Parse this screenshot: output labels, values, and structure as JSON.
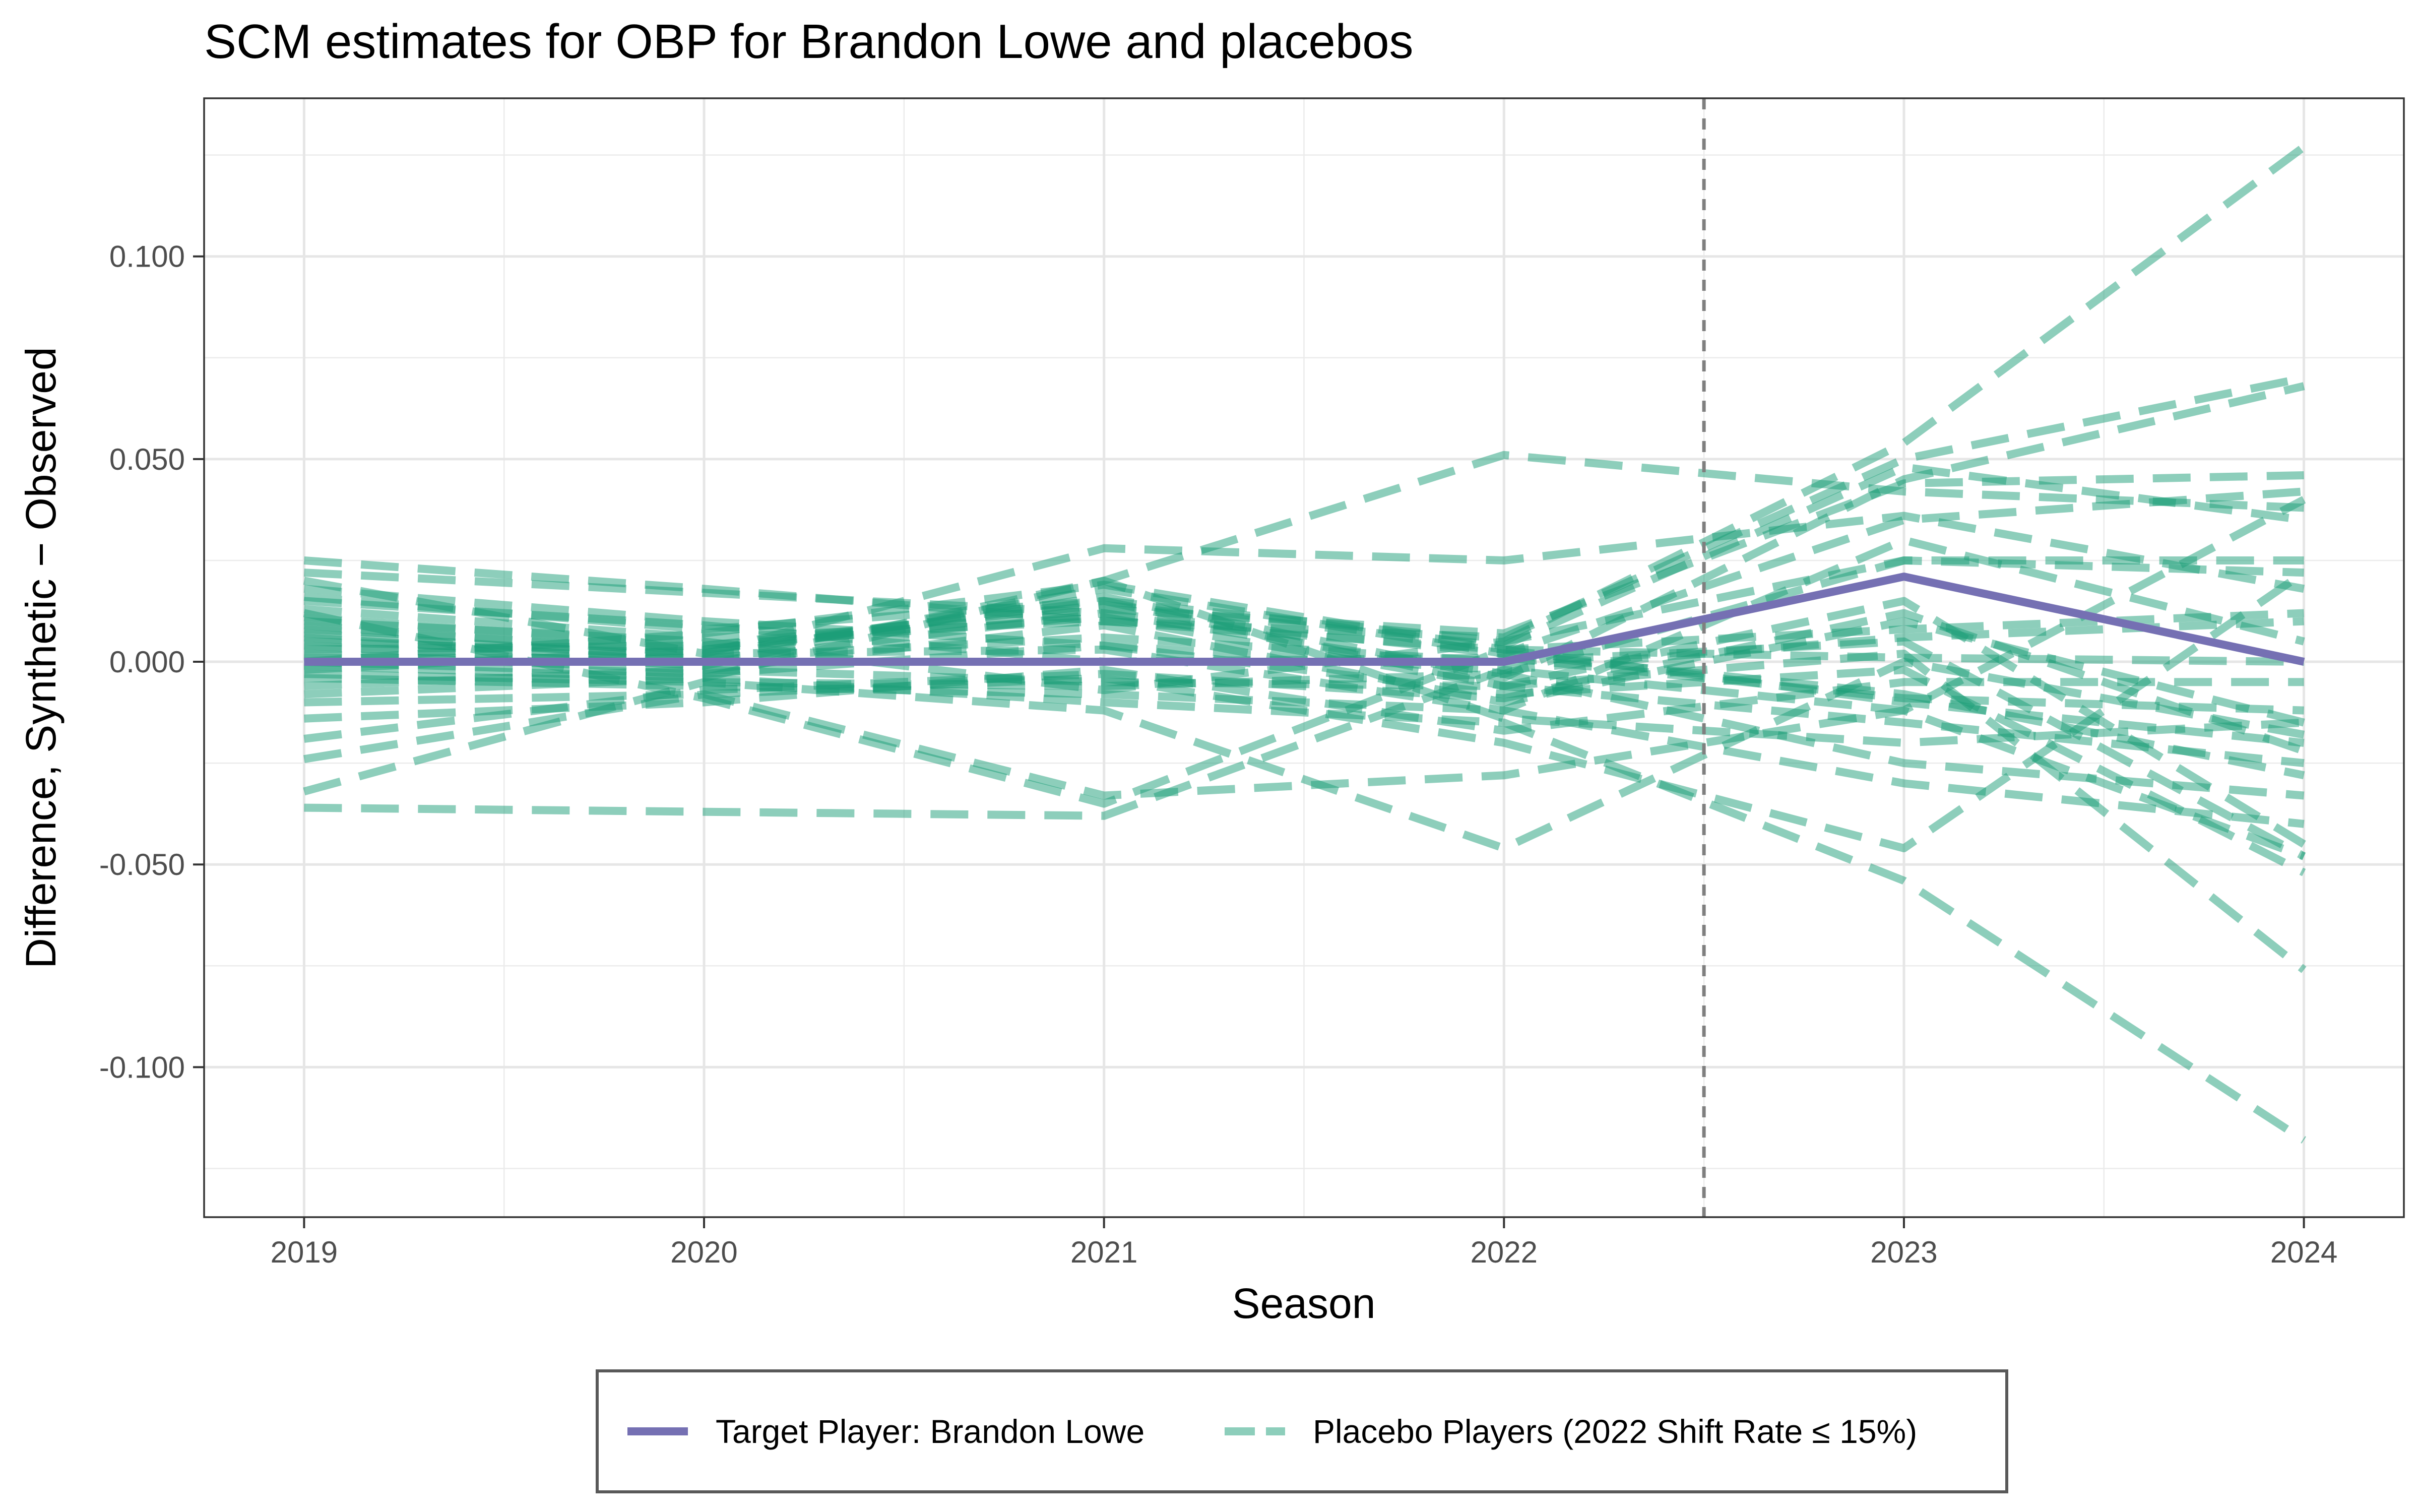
{
  "chart_data": {
    "type": "line",
    "title": "SCM estimates for OBP for Brandon Lowe and placebos",
    "xlabel": "Season",
    "ylabel": "Difference, Synthetic − Observed",
    "x": [
      2019,
      2020,
      2021,
      2022,
      2023,
      2024
    ],
    "x_tick_labels": [
      "2019",
      "2020",
      "2021",
      "2022",
      "2023",
      "2024"
    ],
    "xlim": [
      2018.75,
      2024.25
    ],
    "ylim": [
      -0.137,
      0.139
    ],
    "y_ticks": [
      0.1,
      0.05,
      0.0,
      -0.05,
      -0.1
    ],
    "y_tick_labels": [
      "0.100",
      "0.050",
      "0.000",
      "-0.050",
      "-0.100"
    ],
    "intervention_line_x": 2022.5,
    "grid": true,
    "legend_position": "bottom",
    "colors": {
      "target": "#7570b3",
      "placebo": "#1b9e77",
      "intervention_line": "#7f7f7f"
    },
    "target_series": {
      "name": "Target Player: Brandon Lowe",
      "values": [
        0.0,
        0.0,
        0.0,
        0.0,
        0.021,
        0.0
      ]
    },
    "placebo_legend_label": "Placebo Players (2022 Shift Rate ≤ 15%)",
    "placebo_series": [
      [
        0.025,
        0.018,
        0.01,
        0.003,
        -0.01,
        -0.02
      ],
      [
        0.022,
        0.017,
        0.012,
        0.002,
        -0.008,
        -0.028
      ],
      [
        0.018,
        0.01,
        0.004,
        -0.002,
        0.006,
        0.01
      ],
      [
        0.016,
        0.008,
        0.015,
        0.005,
        0.054,
        0.127
      ],
      [
        0.013,
        0.006,
        0.01,
        0.006,
        0.05,
        0.07
      ],
      [
        0.011,
        0.004,
        0.014,
        0.004,
        0.048,
        0.035
      ],
      [
        0.009,
        0.002,
        0.016,
        -0.004,
        0.045,
        0.068
      ],
      [
        0.008,
        0.003,
        0.013,
        0.007,
        0.044,
        0.046
      ],
      [
        0.007,
        0.001,
        0.018,
        0.002,
        0.035,
        0.042
      ],
      [
        0.006,
        0.0,
        0.012,
        -0.003,
        0.025,
        0.025
      ],
      [
        0.005,
        0.002,
        0.028,
        0.025,
        0.036,
        0.018
      ],
      [
        0.004,
        -0.001,
        0.02,
        0.051,
        0.042,
        0.038
      ],
      [
        0.003,
        0.004,
        0.011,
        -0.006,
        0.015,
        -0.045
      ],
      [
        0.002,
        -0.002,
        0.009,
        -0.01,
        0.01,
        -0.015
      ],
      [
        0.001,
        0.001,
        0.006,
        0.0,
        0.005,
        -0.048
      ],
      [
        0.0,
        -0.003,
        0.004,
        -0.008,
        -0.002,
        -0.052
      ],
      [
        -0.001,
        -0.004,
        0.02,
        -0.014,
        -0.02,
        -0.015
      ],
      [
        -0.003,
        -0.005,
        -0.006,
        -0.003,
        -0.025,
        -0.033
      ],
      [
        -0.004,
        -0.006,
        -0.008,
        -0.012,
        -0.03,
        -0.04
      ],
      [
        -0.006,
        -0.002,
        -0.005,
        -0.006,
        0.002,
        -0.076
      ],
      [
        -0.008,
        -0.004,
        -0.01,
        -0.015,
        -0.054,
        -0.118
      ],
      [
        -0.01,
        -0.008,
        -0.004,
        -0.02,
        -0.046,
        0.022
      ],
      [
        -0.014,
        -0.01,
        -0.002,
        -0.017,
        -0.005,
        -0.005
      ],
      [
        -0.019,
        -0.007,
        -0.003,
        -0.009,
        0.012,
        -0.022
      ],
      [
        -0.024,
        -0.008,
        -0.033,
        -0.028,
        -0.012,
        0.04
      ],
      [
        -0.032,
        -0.005,
        -0.012,
        -0.046,
        0.0,
        -0.018
      ],
      [
        -0.036,
        -0.037,
        -0.038,
        -0.002,
        -0.012,
        -0.048
      ],
      [
        0.012,
        -0.009,
        -0.035,
        0.003,
        0.001,
        0.0
      ],
      [
        0.01,
        0.005,
        -0.007,
        0.005,
        0.025,
        0.022
      ],
      [
        0.0,
        0.007,
        0.019,
        0.003,
        0.008,
        0.012
      ],
      [
        -0.002,
        0.003,
        0.015,
        -0.006,
        -0.015,
        -0.025
      ],
      [
        0.015,
        0.009,
        0.0,
        0.001,
        -0.009,
        -0.012
      ],
      [
        0.02,
        0.002,
        0.003,
        -0.012,
        0.03,
        0.005
      ]
    ]
  }
}
